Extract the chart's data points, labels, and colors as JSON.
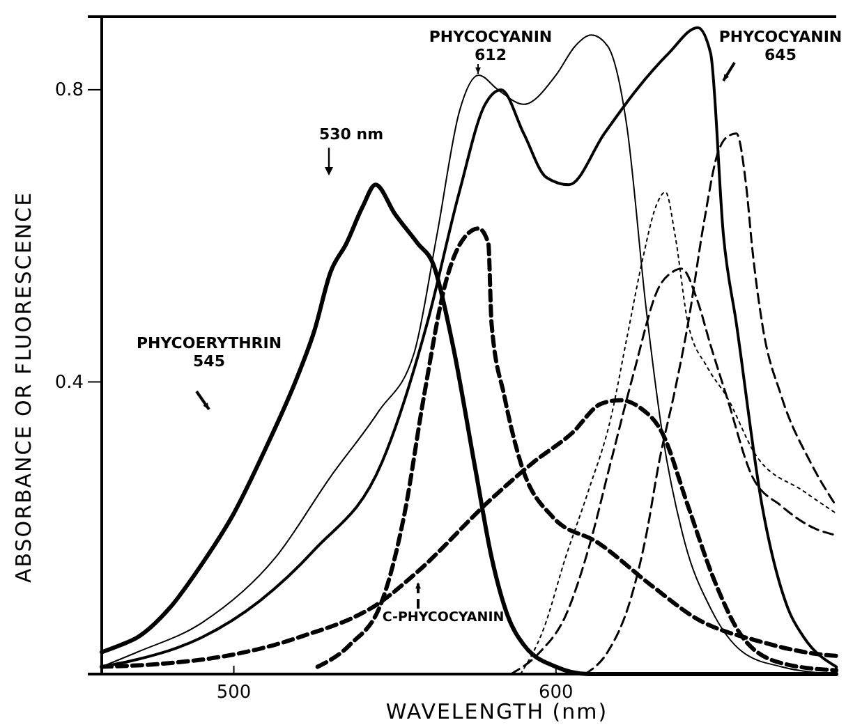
{
  "chart_data": {
    "type": "line",
    "xlabel": "WAVELENGTH (nm)",
    "ylabel": "ABSORBANCE OR FLUORESCENCE",
    "xlim": [
      459,
      687
    ],
    "ylim": [
      0,
      0.9
    ],
    "xticks": [
      500,
      600
    ],
    "yticks": [
      0.4,
      0.8
    ],
    "annotations": [
      "530 nm"
    ],
    "series": [
      {
        "name": "PHYCOERYTHRIN 545",
        "color": "#000000",
        "line_style": "solid",
        "x": [
          459,
          465,
          470,
          480,
          490,
          500,
          510,
          520,
          525,
          530,
          535,
          540,
          544,
          550,
          557,
          562,
          568,
          575,
          580,
          585,
          590,
          600,
          610,
          687
        ],
        "values": [
          0.03,
          0.04,
          0.05,
          0.09,
          0.15,
          0.22,
          0.31,
          0.41,
          0.47,
          0.55,
          0.59,
          0.64,
          0.67,
          0.63,
          0.59,
          0.56,
          0.45,
          0.28,
          0.16,
          0.08,
          0.04,
          0.01,
          0,
          0
        ]
      },
      {
        "name": "PHYCOCYANIN 612",
        "color": "#000000",
        "line_style": "solid",
        "x": [
          459,
          470,
          490,
          513,
          530,
          545,
          556,
          563,
          570,
          576,
          582,
          590,
          600,
          606,
          611,
          616,
          622,
          628,
          633,
          640,
          648,
          658,
          670,
          687
        ],
        "values": [
          0.01,
          0.03,
          0.07,
          0.16,
          0.27,
          0.36,
          0.44,
          0.6,
          0.77,
          0.82,
          0.8,
          0.78,
          0.82,
          0.86,
          0.875,
          0.86,
          0.75,
          0.5,
          0.33,
          0.18,
          0.09,
          0.03,
          0.01,
          0
        ]
      },
      {
        "name": "PHYCOCYANIN 645",
        "color": "#000000",
        "line_style": "solid",
        "x": [
          459,
          470,
          490,
          508,
          525,
          546,
          560,
          570,
          578,
          583,
          590,
          597,
          604,
          615,
          625,
          635,
          644,
          648,
          652,
          656,
          664,
          672,
          677,
          687
        ],
        "values": [
          0.01,
          0.02,
          0.05,
          0.1,
          0.17,
          0.29,
          0.48,
          0.66,
          0.78,
          0.8,
          0.74,
          0.68,
          0.67,
          0.74,
          0.8,
          0.85,
          0.885,
          0.85,
          0.6,
          0.48,
          0.23,
          0.09,
          0.05,
          0.01
        ]
      },
      {
        "name": "C-PHYCOCYANIN",
        "color": "#000000",
        "line_style": "dashed",
        "x": [
          459,
          480,
          499,
          520,
          546,
          557,
          580,
          593,
          605,
          614,
          620,
          626,
          633,
          641,
          649,
          658,
          670,
          687
        ],
        "values": [
          0.01,
          0.015,
          0.026,
          0.05,
          0.1,
          0.14,
          0.24,
          0.29,
          0.33,
          0.37,
          0.375,
          0.365,
          0.33,
          0.23,
          0.13,
          0.05,
          0.015,
          0.005
        ]
      },
      {
        "color": "#000000",
        "line_style": "dashed",
        "x": [
          526,
          536,
          546,
          553,
          559,
          566,
          572,
          576,
          579,
          580,
          584,
          589,
          599,
          613,
          630,
          644,
          663,
          684,
          687
        ],
        "values": [
          0.01,
          0.04,
          0.1,
          0.22,
          0.38,
          0.54,
          0.6,
          0.61,
          0.59,
          0.48,
          0.38,
          0.29,
          0.215,
          0.18,
          0.12,
          0.075,
          0.045,
          0.026,
          0.025
        ]
      },
      {
        "color": "#000000",
        "line_style": "dotted",
        "x": [
          589,
          596,
          603,
          610,
          617,
          622,
          627,
          631,
          634,
          637,
          641,
          647,
          653,
          662,
          677,
          687
        ],
        "values": [
          0.0,
          0.06,
          0.16,
          0.25,
          0.35,
          0.46,
          0.57,
          0.64,
          0.66,
          0.6,
          0.48,
          0.42,
          0.38,
          0.3,
          0.25,
          0.22
        ]
      },
      {
        "color": "#000000",
        "line_style": "dashed",
        "x": [
          609,
          616,
          623,
          628,
          632,
          637,
          641,
          646,
          650,
          653,
          656,
          659,
          661,
          664,
          670,
          679,
          687
        ],
        "values": [
          0.0,
          0.03,
          0.1,
          0.19,
          0.29,
          0.39,
          0.48,
          0.62,
          0.71,
          0.735,
          0.74,
          0.67,
          0.58,
          0.48,
          0.38,
          0.29,
          0.23
        ]
      },
      {
        "color": "#000000",
        "line_style": "dashed",
        "x": [
          586,
          595,
          603,
          610,
          617,
          624,
          632,
          636,
          639,
          644,
          648,
          653,
          661,
          670,
          680,
          687
        ],
        "values": [
          0.0,
          0.03,
          0.08,
          0.17,
          0.29,
          0.41,
          0.53,
          0.55,
          0.555,
          0.51,
          0.45,
          0.38,
          0.27,
          0.23,
          0.2,
          0.19
        ]
      }
    ]
  }
}
